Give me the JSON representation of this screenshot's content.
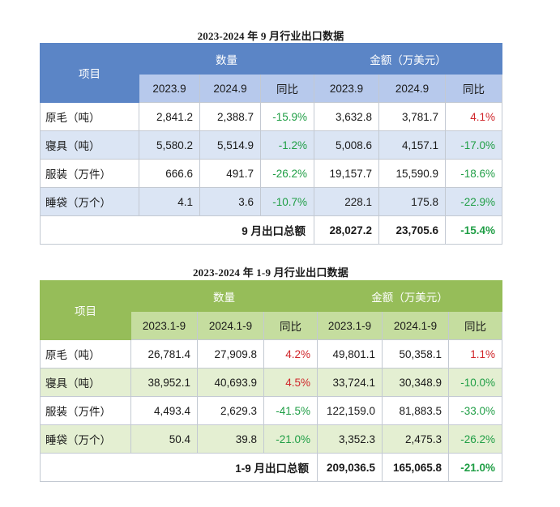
{
  "table1": {
    "caption": "2023-2024 年 9 月行业出口数据",
    "item_header": "项目",
    "quantity_header": "数量",
    "amount_header": "金额（万美元）",
    "sub_headers": [
      "2023.9",
      "2024.9",
      "同比",
      "2023.9",
      "2024.9",
      "同比"
    ],
    "rows": [
      {
        "name": "原毛（吨）",
        "q_prev": "2,841.2",
        "q_curr": "2,388.7",
        "q_yoy": "-15.9%",
        "a_prev": "3,632.8",
        "a_curr": "3,781.7",
        "a_yoy": "4.1%"
      },
      {
        "name": "寝具（吨）",
        "q_prev": "5,580.2",
        "q_curr": "5,514.9",
        "q_yoy": "-1.2%",
        "a_prev": "5,008.6",
        "a_curr": "4,157.1",
        "a_yoy": "-17.0%"
      },
      {
        "name": "服装（万件）",
        "q_prev": "666.6",
        "q_curr": "491.7",
        "q_yoy": "-26.2%",
        "a_prev": "19,157.7",
        "a_curr": "15,590.9",
        "a_yoy": "-18.6%"
      },
      {
        "name": "睡袋（万个）",
        "q_prev": "4.1",
        "q_curr": "3.6",
        "q_yoy": "-10.7%",
        "a_prev": "228.1",
        "a_curr": "175.8",
        "a_yoy": "-22.9%"
      }
    ],
    "total": {
      "label": "9 月出口总额",
      "prev": "28,027.2",
      "curr": "23,705.6",
      "yoy": "-15.4%"
    }
  },
  "table2": {
    "caption": "2023-2024 年 1-9 月行业出口数据",
    "item_header": "项目",
    "quantity_header": "数量",
    "amount_header": "金额（万美元）",
    "sub_headers": [
      "2023.1-9",
      "2024.1-9",
      "同比",
      "2023.1-9",
      "2024.1-9",
      "同比"
    ],
    "rows": [
      {
        "name": "原毛（吨）",
        "q_prev": "26,781.4",
        "q_curr": "27,909.8",
        "q_yoy": "4.2%",
        "a_prev": "49,801.1",
        "a_curr": "50,358.1",
        "a_yoy": "1.1%"
      },
      {
        "name": "寝具（吨）",
        "q_prev": "38,952.1",
        "q_curr": "40,693.9",
        "q_yoy": "4.5%",
        "a_prev": "33,724.1",
        "a_curr": "30,348.9",
        "a_yoy": "-10.0%"
      },
      {
        "name": "服装（万件）",
        "q_prev": "4,493.4",
        "q_curr": "2,629.3",
        "q_yoy": "-41.5%",
        "a_prev": "122,159.0",
        "a_curr": "81,883.5",
        "a_yoy": "-33.0%"
      },
      {
        "name": "睡袋（万个）",
        "q_prev": "50.4",
        "q_curr": "39.8",
        "q_yoy": "-21.0%",
        "a_prev": "3,352.3",
        "a_curr": "2,475.3",
        "a_yoy": "-26.2%"
      }
    ],
    "total": {
      "label": "1-9 月出口总额",
      "prev": "209,036.5",
      "curr": "165,065.8",
      "yoy": "-21.0%"
    }
  },
  "colors": {
    "table1_header": "#5b85c6",
    "table1_subheader": "#b7c9ec",
    "table1_alt_row": "#dbe5f4",
    "table2_header": "#96bd59",
    "table2_subheader": "#c5dd9f",
    "table2_alt_row": "#e4efd2",
    "increase": "#d0262b",
    "decrease": "#1f9e45"
  }
}
